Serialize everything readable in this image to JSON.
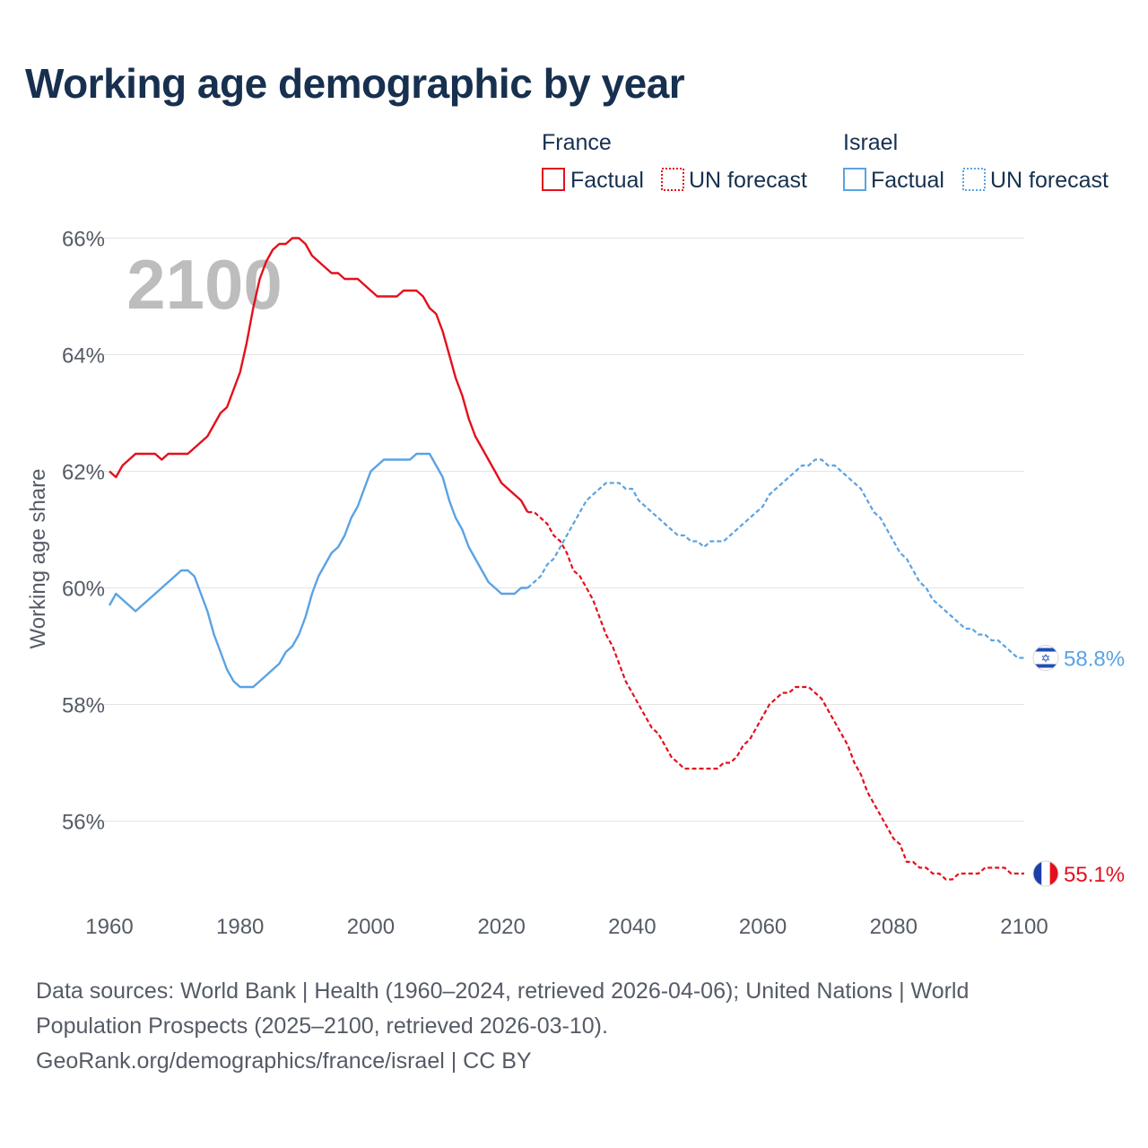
{
  "chart_data": {
    "type": "line",
    "title": "Working age demographic by year",
    "xlabel": "",
    "ylabel": "Working age share",
    "year_watermark": "2100",
    "xlim": [
      1960,
      2100
    ],
    "ylim": [
      54.5,
      66.5
    ],
    "x_ticks": [
      1960,
      1980,
      2000,
      2020,
      2040,
      2060,
      2080,
      2100
    ],
    "x_tick_labels": [
      "1960",
      "1980",
      "2000",
      "2020",
      "2040",
      "2060",
      "2080",
      "2100"
    ],
    "y_ticks": [
      56,
      58,
      60,
      62,
      64,
      66
    ],
    "y_tick_labels": [
      "56%",
      "58%",
      "60%",
      "62%",
      "64%",
      "66%"
    ],
    "legend": {
      "position": "top-right",
      "groups": [
        {
          "country": "France",
          "factual_label": "Factual",
          "forecast_label": "UN forecast",
          "color": "#e3101c"
        },
        {
          "country": "Israel",
          "factual_label": "Factual",
          "forecast_label": "UN forecast",
          "color": "#5aa3e3"
        }
      ]
    },
    "series": [
      {
        "name": "France",
        "color": "#e3101c",
        "end_label": "55.1%",
        "flag": "france-flag",
        "factual": {
          "x": [
            1960,
            1961,
            1962,
            1963,
            1964,
            1965,
            1966,
            1967,
            1968,
            1969,
            1970,
            1971,
            1972,
            1973,
            1974,
            1975,
            1976,
            1977,
            1978,
            1979,
            1980,
            1981,
            1982,
            1983,
            1984,
            1985,
            1986,
            1987,
            1988,
            1989,
            1990,
            1991,
            1992,
            1993,
            1994,
            1995,
            1996,
            1997,
            1998,
            1999,
            2000,
            2001,
            2002,
            2003,
            2004,
            2005,
            2006,
            2007,
            2008,
            2009,
            2010,
            2011,
            2012,
            2013,
            2014,
            2015,
            2016,
            2017,
            2018,
            2019,
            2020,
            2021,
            2022,
            2023,
            2024
          ],
          "y": [
            62.0,
            61.9,
            62.1,
            62.2,
            62.3,
            62.3,
            62.3,
            62.3,
            62.2,
            62.3,
            62.3,
            62.3,
            62.3,
            62.4,
            62.5,
            62.6,
            62.8,
            63.0,
            63.1,
            63.4,
            63.7,
            64.2,
            64.8,
            65.3,
            65.6,
            65.8,
            65.9,
            65.9,
            66.0,
            66.0,
            65.9,
            65.7,
            65.6,
            65.5,
            65.4,
            65.4,
            65.3,
            65.3,
            65.3,
            65.2,
            65.1,
            65.0,
            65.0,
            65.0,
            65.0,
            65.1,
            65.1,
            65.1,
            65.0,
            64.8,
            64.7,
            64.4,
            64.0,
            63.6,
            63.3,
            62.9,
            62.6,
            62.4,
            62.2,
            62.0,
            61.8,
            61.7,
            61.6,
            61.5,
            61.3
          ]
        },
        "forecast": {
          "x": [
            2024,
            2025,
            2026,
            2027,
            2028,
            2029,
            2030,
            2031,
            2032,
            2033,
            2034,
            2035,
            2036,
            2037,
            2038,
            2039,
            2040,
            2041,
            2042,
            2043,
            2044,
            2045,
            2046,
            2047,
            2048,
            2049,
            2050,
            2051,
            2052,
            2053,
            2054,
            2055,
            2056,
            2057,
            2058,
            2059,
            2060,
            2061,
            2062,
            2063,
            2064,
            2065,
            2066,
            2067,
            2068,
            2069,
            2070,
            2071,
            2072,
            2073,
            2074,
            2075,
            2076,
            2077,
            2078,
            2079,
            2080,
            2081,
            2082,
            2083,
            2084,
            2085,
            2086,
            2087,
            2088,
            2089,
            2090,
            2091,
            2092,
            2093,
            2094,
            2095,
            2096,
            2097,
            2098,
            2099,
            2100
          ],
          "y": [
            61.3,
            61.3,
            61.2,
            61.1,
            60.9,
            60.8,
            60.6,
            60.3,
            60.2,
            60.0,
            59.8,
            59.5,
            59.2,
            59.0,
            58.7,
            58.4,
            58.2,
            58.0,
            57.8,
            57.6,
            57.5,
            57.3,
            57.1,
            57.0,
            56.9,
            56.9,
            56.9,
            56.9,
            56.9,
            56.9,
            57.0,
            57.0,
            57.1,
            57.3,
            57.4,
            57.6,
            57.8,
            58.0,
            58.1,
            58.2,
            58.2,
            58.3,
            58.3,
            58.3,
            58.2,
            58.1,
            57.9,
            57.7,
            57.5,
            57.3,
            57.0,
            56.8,
            56.5,
            56.3,
            56.1,
            55.9,
            55.7,
            55.6,
            55.3,
            55.3,
            55.2,
            55.2,
            55.1,
            55.1,
            55.0,
            55.0,
            55.1,
            55.1,
            55.1,
            55.1,
            55.2,
            55.2,
            55.2,
            55.2,
            55.1,
            55.1,
            55.1
          ]
        }
      },
      {
        "name": "Israel",
        "color": "#5aa3e3",
        "end_label": "58.8%",
        "flag": "israel-flag",
        "factual": {
          "x": [
            1960,
            1961,
            1962,
            1963,
            1964,
            1965,
            1966,
            1967,
            1968,
            1969,
            1970,
            1971,
            1972,
            1973,
            1974,
            1975,
            1976,
            1977,
            1978,
            1979,
            1980,
            1981,
            1982,
            1983,
            1984,
            1985,
            1986,
            1987,
            1988,
            1989,
            1990,
            1991,
            1992,
            1993,
            1994,
            1995,
            1996,
            1997,
            1998,
            1999,
            2000,
            2001,
            2002,
            2003,
            2004,
            2005,
            2006,
            2007,
            2008,
            2009,
            2010,
            2011,
            2012,
            2013,
            2014,
            2015,
            2016,
            2017,
            2018,
            2019,
            2020,
            2021,
            2022,
            2023,
            2024
          ],
          "y": [
            59.7,
            59.9,
            59.8,
            59.7,
            59.6,
            59.7,
            59.8,
            59.9,
            60.0,
            60.1,
            60.2,
            60.3,
            60.3,
            60.2,
            59.9,
            59.6,
            59.2,
            58.9,
            58.6,
            58.4,
            58.3,
            58.3,
            58.3,
            58.4,
            58.5,
            58.6,
            58.7,
            58.9,
            59.0,
            59.2,
            59.5,
            59.9,
            60.2,
            60.4,
            60.6,
            60.7,
            60.9,
            61.2,
            61.4,
            61.7,
            62.0,
            62.1,
            62.2,
            62.2,
            62.2,
            62.2,
            62.2,
            62.3,
            62.3,
            62.3,
            62.1,
            61.9,
            61.5,
            61.2,
            61.0,
            60.7,
            60.5,
            60.3,
            60.1,
            60.0,
            59.9,
            59.9,
            59.9,
            60.0,
            60.0
          ]
        },
        "forecast": {
          "x": [
            2024,
            2025,
            2026,
            2027,
            2028,
            2029,
            2030,
            2031,
            2032,
            2033,
            2034,
            2035,
            2036,
            2037,
            2038,
            2039,
            2040,
            2041,
            2042,
            2043,
            2044,
            2045,
            2046,
            2047,
            2048,
            2049,
            2050,
            2051,
            2052,
            2053,
            2054,
            2055,
            2056,
            2057,
            2058,
            2059,
            2060,
            2061,
            2062,
            2063,
            2064,
            2065,
            2066,
            2067,
            2068,
            2069,
            2070,
            2071,
            2072,
            2073,
            2074,
            2075,
            2076,
            2077,
            2078,
            2079,
            2080,
            2081,
            2082,
            2083,
            2084,
            2085,
            2086,
            2087,
            2088,
            2089,
            2090,
            2091,
            2092,
            2093,
            2094,
            2095,
            2096,
            2097,
            2098,
            2099,
            2100
          ],
          "y": [
            60.0,
            60.1,
            60.2,
            60.4,
            60.5,
            60.7,
            60.9,
            61.1,
            61.3,
            61.5,
            61.6,
            61.7,
            61.8,
            61.8,
            61.8,
            61.7,
            61.7,
            61.5,
            61.4,
            61.3,
            61.2,
            61.1,
            61.0,
            60.9,
            60.9,
            60.8,
            60.8,
            60.7,
            60.8,
            60.8,
            60.8,
            60.9,
            61.0,
            61.1,
            61.2,
            61.3,
            61.4,
            61.6,
            61.7,
            61.8,
            61.9,
            62.0,
            62.1,
            62.1,
            62.2,
            62.2,
            62.1,
            62.1,
            62.0,
            61.9,
            61.8,
            61.7,
            61.5,
            61.3,
            61.2,
            61.0,
            60.8,
            60.6,
            60.5,
            60.3,
            60.1,
            60.0,
            59.8,
            59.7,
            59.6,
            59.5,
            59.4,
            59.3,
            59.3,
            59.2,
            59.2,
            59.1,
            59.1,
            59.0,
            58.9,
            58.8,
            58.8
          ]
        }
      }
    ]
  },
  "footer": {
    "line1": "Data sources: World Bank | Health (1960–2024, retrieved 2026-04-06); United Nations | World",
    "line2": "Population Prospects (2025–2100, retrieved 2026-03-10).",
    "line3": "GeoRank.org/demographics/france/israel | CC BY"
  }
}
